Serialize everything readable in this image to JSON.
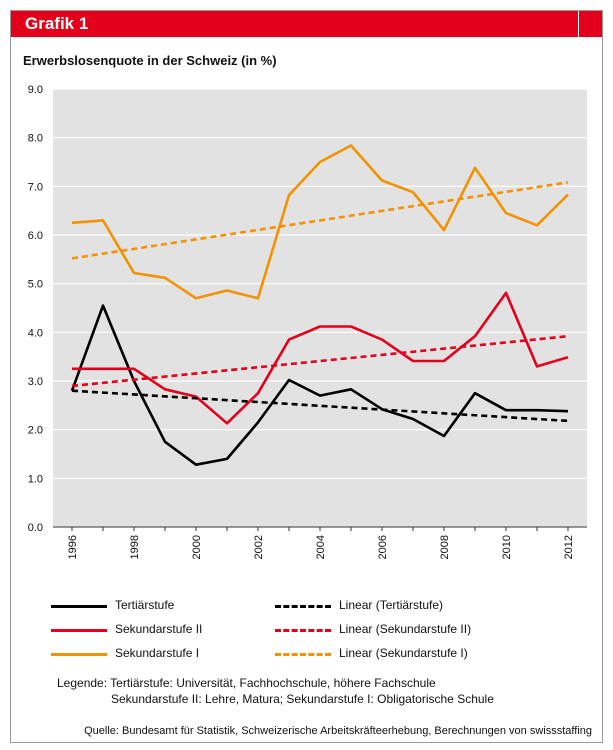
{
  "header": {
    "title": "Grafik 1"
  },
  "chart_data": {
    "type": "line",
    "title": "Erwerbslosenquote in der Schweiz (in %)",
    "xlabel": "",
    "ylabel": "",
    "x": [
      1996,
      1997,
      1998,
      1999,
      2000,
      2001,
      2002,
      2003,
      2004,
      2005,
      2006,
      2007,
      2008,
      2009,
      2010,
      2011,
      2012
    ],
    "x_tick_labels": [
      "1996",
      "1998",
      "2000",
      "2002",
      "2004",
      "2006",
      "2008",
      "2010",
      "2012"
    ],
    "ylim": [
      0,
      9
    ],
    "y_tick_labels": [
      "0.0",
      "1.0",
      "2.0",
      "3.0",
      "4.0",
      "5.0",
      "6.0",
      "7.0",
      "8.0",
      "9.0"
    ],
    "grid": true,
    "legend_position": "bottom",
    "series": [
      {
        "name": "Tertiärstufe",
        "color": "#000000",
        "style": "solid",
        "values": [
          2.8,
          4.55,
          3.0,
          1.75,
          1.28,
          1.4,
          2.15,
          3.02,
          2.7,
          2.83,
          2.42,
          2.22,
          1.87,
          2.75,
          2.4,
          2.4,
          2.38
        ]
      },
      {
        "name": "Sekundarstufe II",
        "color": "#e2001a",
        "style": "solid",
        "values": [
          3.25,
          3.25,
          3.25,
          2.83,
          2.68,
          2.13,
          2.75,
          3.85,
          4.12,
          4.12,
          3.85,
          3.41,
          3.41,
          3.92,
          4.81,
          3.3,
          3.49
        ]
      },
      {
        "name": "Sekundarstufe I",
        "color": "#f39200",
        "style": "solid",
        "values": [
          6.25,
          6.3,
          5.22,
          5.12,
          4.7,
          4.86,
          4.7,
          6.82,
          7.5,
          7.84,
          7.12,
          6.88,
          6.1,
          7.38,
          6.45,
          6.2,
          6.83
        ]
      },
      {
        "name": "Linear (Tertiärstufe)",
        "color": "#000000",
        "style": "dashed",
        "x": [
          1996,
          2012
        ],
        "values": [
          2.8,
          2.18
        ]
      },
      {
        "name": "Linear (Sekundarstufe II)",
        "color": "#e2001a",
        "style": "dashed",
        "x": [
          1996,
          2012
        ],
        "values": [
          2.9,
          3.92
        ]
      },
      {
        "name": "Linear (Sekundarstufe I)",
        "color": "#f39200",
        "style": "dashed",
        "x": [
          1996,
          2012
        ],
        "values": [
          5.52,
          7.08
        ]
      }
    ]
  },
  "legend": {
    "items": [
      {
        "label": "Tertiärstufe",
        "color": "#000000",
        "style": "solid"
      },
      {
        "label": "Linear (Tertiärstufe)",
        "color": "#000000",
        "style": "dashed"
      },
      {
        "label": "Sekundarstufe II",
        "color": "#e2001a",
        "style": "solid"
      },
      {
        "label": "Linear (Sekundarstufe II)",
        "color": "#e2001a",
        "style": "dashed"
      },
      {
        "label": "Sekundarstufe I",
        "color": "#f39200",
        "style": "solid"
      },
      {
        "label": "Linear (Sekundarstufe I)",
        "color": "#f39200",
        "style": "dashed"
      }
    ]
  },
  "note": {
    "line1": "Legende: Tertiärstufe: Universität, Fachhochschule, höhere Fachschule",
    "line2": "Sekundarstufe II: Lehre, Matura; Sekundarstufe I: Obligatorische Schule"
  },
  "source": "Quelle: Bundesamt für Statistik, Schweizerische Arbeitskräfteerhebung, Berechnungen von swissstaffing",
  "colors": {
    "brand_red": "#e2001a",
    "plot_background": "#e2e2e2"
  }
}
